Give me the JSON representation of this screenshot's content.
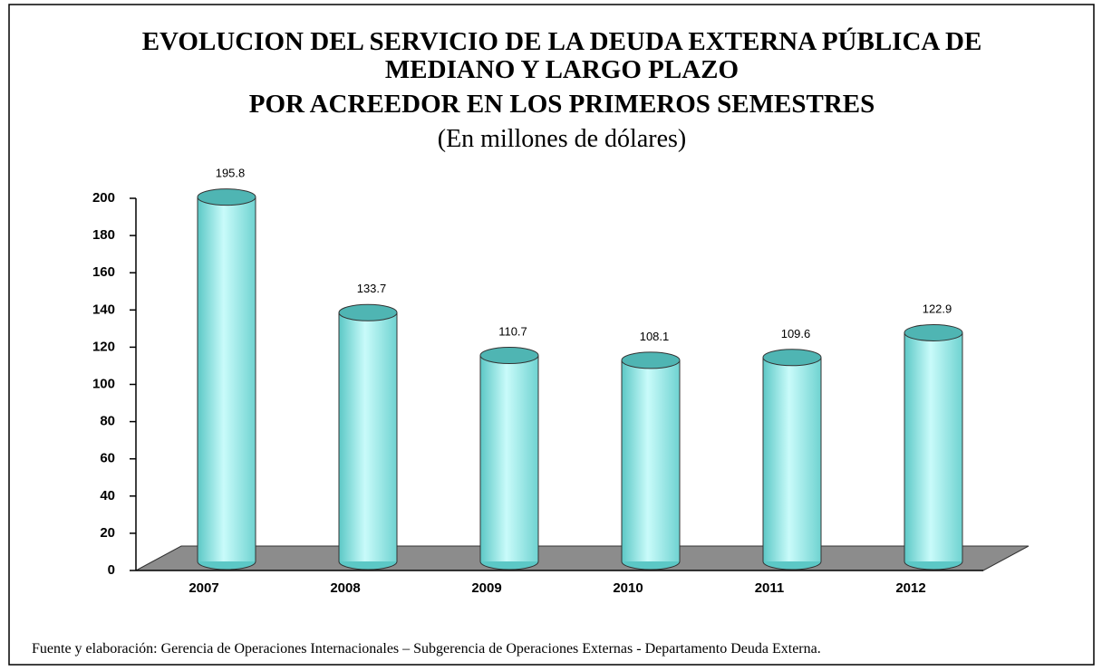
{
  "chart_data": {
    "type": "bar",
    "title": "EVOLUCION DEL SERVICIO DE LA DEUDA EXTERNA PÚBLICA DE",
    "title_line2": "MEDIANO Y LARGO PLAZO",
    "title_line3": "POR ACREEDOR EN LOS PRIMEROS SEMESTRES",
    "subtitle": "(En millones de dólares)",
    "categories": [
      "2007",
      "2008",
      "2009",
      "2010",
      "2011",
      "2012"
    ],
    "values": [
      195.8,
      133.7,
      110.7,
      108.1,
      109.6,
      122.9
    ],
    "color": "#8ee8e6",
    "ylim": [
      0,
      200
    ],
    "yticks": [
      0,
      20,
      40,
      60,
      80,
      100,
      120,
      140,
      160,
      180,
      200
    ],
    "grid": false,
    "source": "Fuente y elaboración: Gerencia de Operaciones Internacionales – Subgerencia de Operaciones Externas - Departamento Deuda  Externa."
  }
}
